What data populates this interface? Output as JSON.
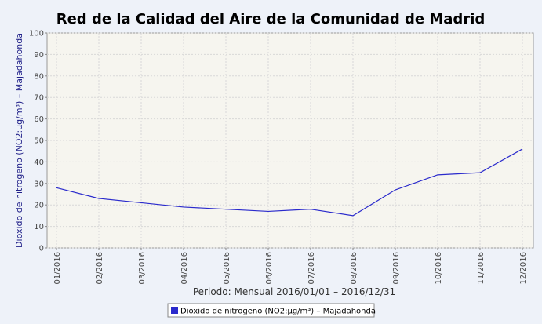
{
  "chart_data": {
    "type": "line",
    "title": "Red de la Calidad del Aire de la Comunidad de Madrid",
    "ylabel": "Dioxido de nitrogeno (NO2:µg/m³) – Majadahonda",
    "xlabel": "Periodo: Mensual 2016/01/01 – 2016/12/31",
    "categories": [
      "01/2016",
      "02/2016",
      "03/2016",
      "04/2016",
      "05/2016",
      "06/2016",
      "07/2016",
      "08/2016",
      "09/2016",
      "10/2016",
      "11/2016",
      "12/2016"
    ],
    "series": [
      {
        "name": "Dioxido de nitrogeno (NO2:µg/m³) – Majadahonda",
        "color": "#2a2acc",
        "values": [
          28,
          23,
          21,
          19,
          18,
          17,
          18,
          15,
          27,
          34,
          35,
          46
        ]
      }
    ],
    "ylim": [
      0,
      100
    ],
    "yticks": [
      0,
      10,
      20,
      30,
      40,
      50,
      60,
      70,
      80,
      90,
      100
    ],
    "grid": true
  }
}
